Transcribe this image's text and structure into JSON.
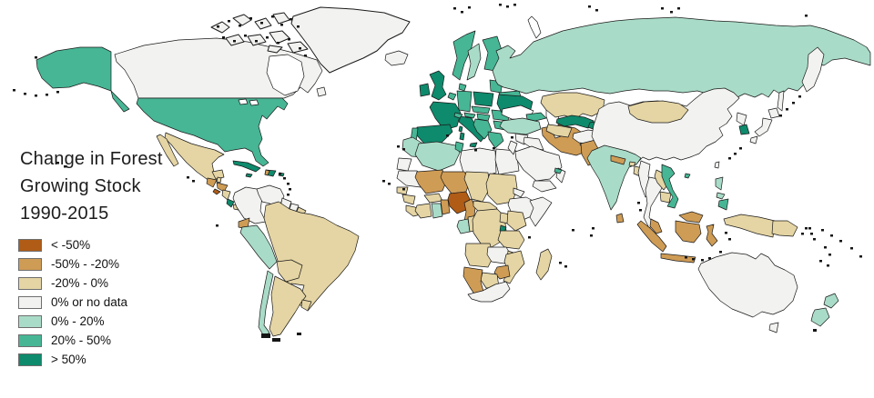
{
  "title": {
    "lines": [
      "Change in Forest",
      "Growing Stock",
      "1990-2015"
    ]
  },
  "legend": {
    "items": [
      {
        "key": "lt-50",
        "label": "< -50%",
        "color": "#b05c16"
      },
      {
        "key": "-50--20",
        "label": "-50% - -20%",
        "color": "#cf9c55"
      },
      {
        "key": "-20-0",
        "label": "-20% - 0%",
        "color": "#e5d5a4"
      },
      {
        "key": "0-nodata",
        "label": "0% or no data",
        "color": "#f2f2f0"
      },
      {
        "key": "0-20",
        "label": "0% - 20%",
        "color": "#a9dcc8"
      },
      {
        "key": "20-50",
        "label": "20% - 50%",
        "color": "#47b695"
      },
      {
        "key": "gt50",
        "label": "> 50%",
        "color": "#0e8a6c"
      }
    ]
  },
  "map": {
    "ocean_color": "#ffffff",
    "border_color": "#1a1a1a",
    "island_color": "#151515",
    "countries": {
      "alaska": "20-50",
      "ak-panhandle": "20-50",
      "canada": "0-nodata",
      "newfoundland": "0-nodata",
      "greenland": "0-nodata",
      "arctic-1": "0-nodata",
      "arctic-2": "0-nodata",
      "arctic-3": "0-nodata",
      "arctic-4": "0-nodata",
      "arctic-5": "0-nodata",
      "arctic-6": "0-nodata",
      "arctic-7": "0-nodata",
      "arctic-8": "0-nodata",
      "arctic-9": "0-nodata",
      "usa": "20-50",
      "mexico": "-20-0",
      "baja": "-20-0",
      "yucatan": "-20-0",
      "guatemala": "-50--20",
      "belize": "-20-0",
      "honduras": "-50--20",
      "el-salvador": "lt-50",
      "nicaragua": "-20-0",
      "costa-rica": "gt50",
      "panama": "-20-0",
      "cuba": "gt50",
      "jamaica": "gt50",
      "hispaniola": "gt50",
      "haiti": "-50--20",
      "puerto-rico": "gt50",
      "colombia": "0-nodata",
      "venezuela": "0-nodata",
      "guyana": "0-nodata",
      "suriname": "0-nodata",
      "french-guiana": "-20-0",
      "ecuador": "-50--20",
      "peru": "0-20",
      "brazil": "-20-0",
      "bolivia": "-20-0",
      "paraguay": "0-nodata",
      "chile": "0-20",
      "argentina": "-20-0",
      "uruguay": "-20-0",
      "iceland": "0-nodata",
      "ireland": "gt50",
      "uk": "gt50",
      "norway": "20-50",
      "sweden": "0-20",
      "finland": "20-50",
      "denmark": "20-50",
      "baltics": "20-50",
      "belarus": "20-50",
      "germany": "20-50",
      "benelux": "20-50",
      "france": "gt50",
      "spain": "gt50",
      "portugal": "20-50",
      "italy": "gt50",
      "sicily": "gt50",
      "sardinia": "gt50",
      "corsica": "gt50",
      "switzerland": "20-50",
      "austria": "20-50",
      "czech-slovakia": "20-50",
      "poland": "gt50",
      "hungary": "20-50",
      "balkans": "20-50",
      "romania": "20-50",
      "bulgaria": "20-50",
      "greece": "20-50",
      "ukraine": "gt50",
      "turkey": "0-20",
      "caucasus": "20-50",
      "morocco": "0-20",
      "western-sahara": "0-nodata",
      "algeria": "0-20",
      "tunisia": "20-50",
      "libya": "0-nodata",
      "egypt": "0-nodata",
      "mauritania": "0-nodata",
      "senegal": "-20-0",
      "guinea": "-20-0",
      "sierra-liberia": "-20-0",
      "mali": "-50--20",
      "burkina": "-20-0",
      "ivory-coast": "-20-0",
      "ghana": "0-20",
      "togo-benin": "-50--20",
      "niger": "-50--20",
      "nigeria": "lt-50",
      "chad": "-20-0",
      "sudan": "-20-0",
      "eritrea": "0-nodata",
      "ethiopia": "0-nodata",
      "somalia": "0-nodata",
      "cameroon": "-50--20",
      "car": "-20-0",
      "gabon": "0-20",
      "congo": "-20-0",
      "drc": "-20-0",
      "uganda": "-20-0",
      "kenya": "-20-0",
      "rwanda-burundi": "gt50",
      "tanzania": "-20-0",
      "angola": "-20-0",
      "zambia": "0-nodata",
      "malawi": "-20-0",
      "mozambique": "-20-0",
      "zimbabwe": "-50--20",
      "botswana": "-20-0",
      "namibia": "-50--20",
      "south-africa": "0-nodata",
      "madagascar": "-20-0",
      "syria": "0-nodata",
      "israel-jordan": "0-nodata",
      "iraq": "0-nodata",
      "kuwait": "0-nodata",
      "saudi": "0-nodata",
      "yemen": "0-nodata",
      "oman": "0-nodata",
      "uae": "20-50",
      "iran": "-50--20",
      "russia": "0-20",
      "kamchatka": "0-nodata",
      "sakhalin": "0-nodata",
      "kazakhstan": "-20-0",
      "uzbekistan": "gt50",
      "turkmenistan": "-20-0",
      "kyrgyz-tajik": "gt50",
      "afghanistan": "0-nodata",
      "pakistan": "-50--20",
      "india": "0-20",
      "nepal": "-50--20",
      "bhutan": "-20-0",
      "bangladesh": "-20-0",
      "sri-lanka": "-50--20",
      "china": "0-nodata",
      "mongolia": "-20-0",
      "n-korea": "0-nodata",
      "s-korea": "gt50",
      "japan-hokkaido": "0-nodata",
      "japan-honshu": "0-nodata",
      "japan-kyushu": "0-nodata",
      "taiwan": "0-nodata",
      "hainan": "20-50",
      "myanmar": "0-nodata",
      "thailand": "0-nodata",
      "laos": "-20-0",
      "cambodia": "-20-0",
      "vietnam": "20-50",
      "malaysia-pen": "-50--20",
      "sumatra": "-50--20",
      "java": "-50--20",
      "borneo-my": "-50--20",
      "kalimantan": "-50--20",
      "sulawesi": "-50--20",
      "luzon": "0-20",
      "visayas": "0-20",
      "mindanao": "20-50",
      "new-guinea-west": "-20-0",
      "png": "-20-0",
      "australia": "0-nodata",
      "tasmania": "0-nodata",
      "nz-north": "0-20",
      "nz-south": "0-20"
    }
  }
}
